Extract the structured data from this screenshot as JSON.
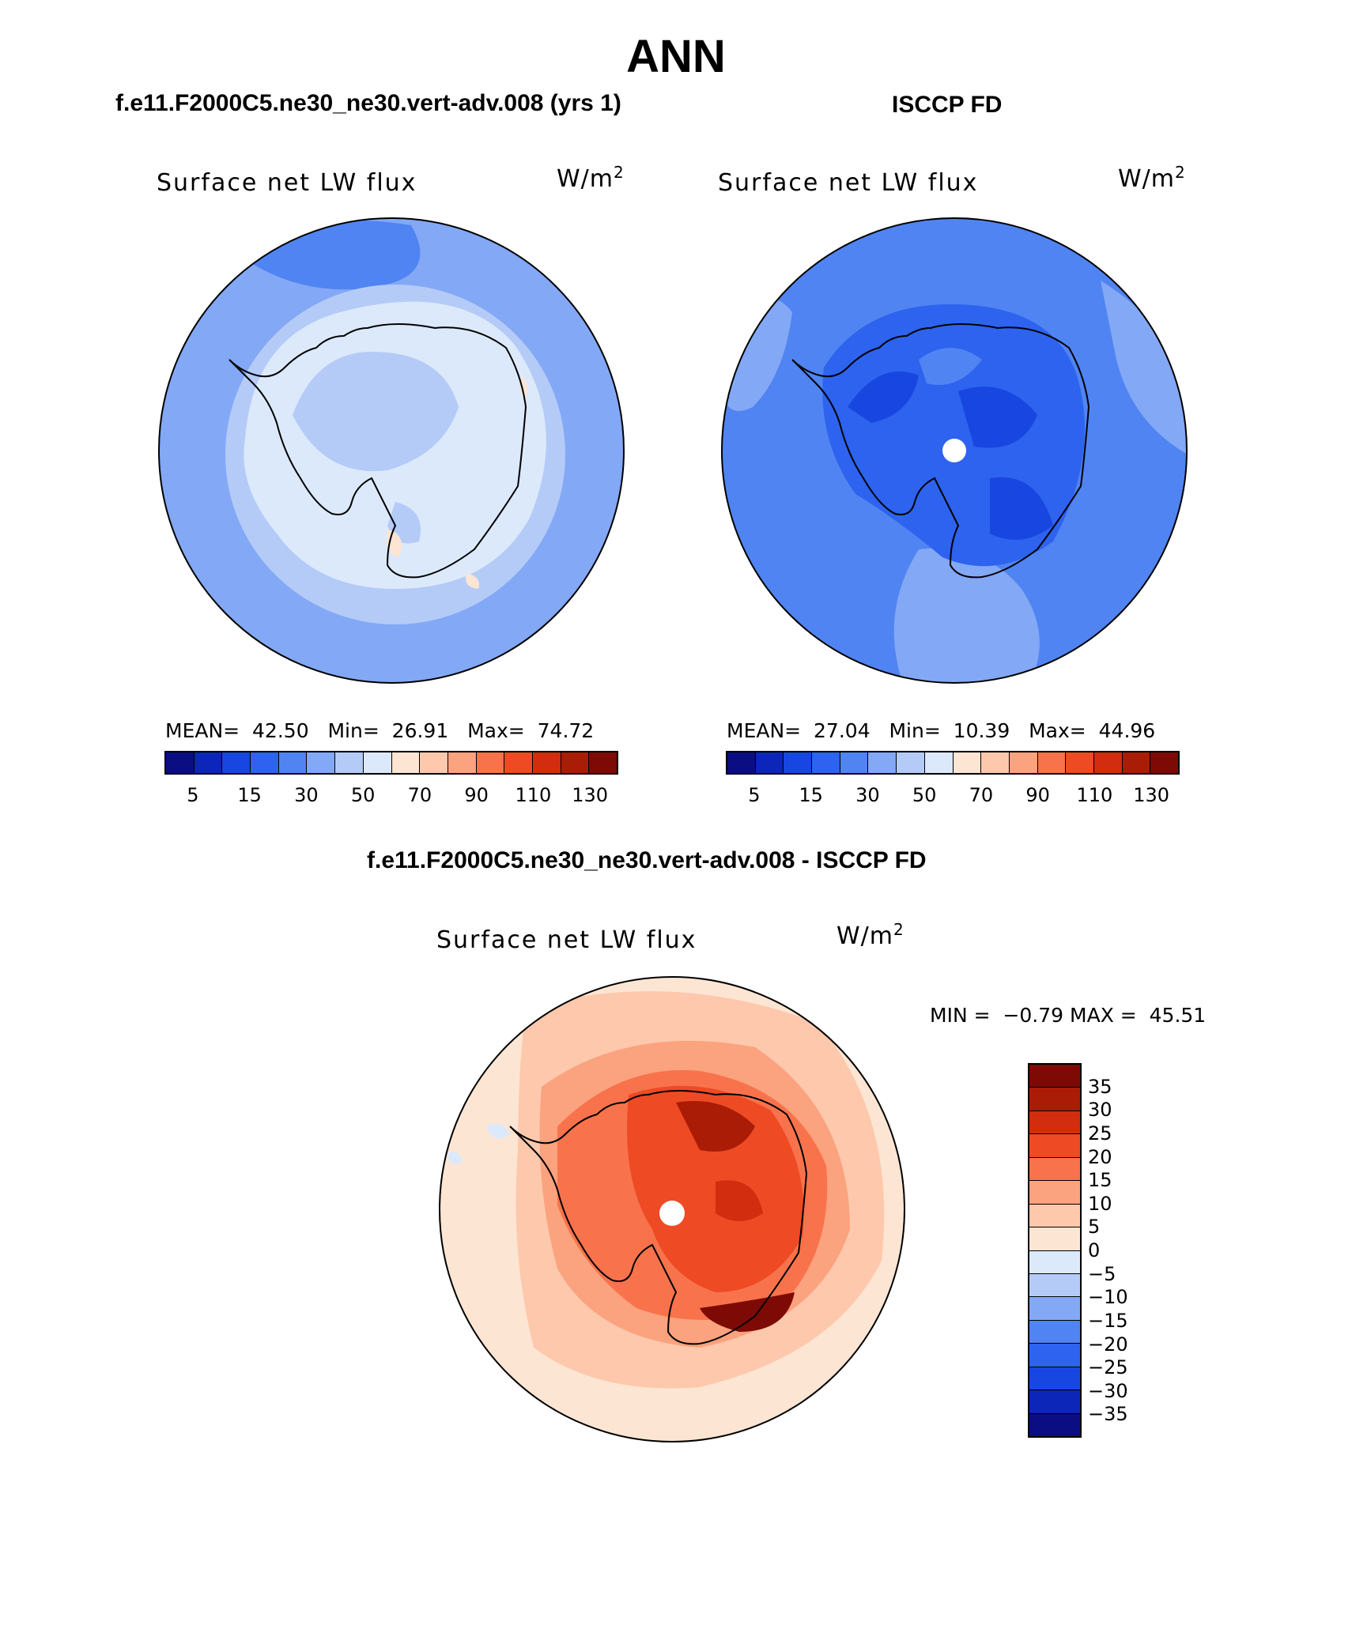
{
  "title": "ANN",
  "panels": {
    "model": {
      "header": "f.e11.F2000C5.ne30_ne30.vert-adv.008 (yrs 1)",
      "plot_title": "Surface net LW flux",
      "units": "W/m",
      "units_exp": "2",
      "stats": {
        "mean_label": "MEAN=",
        "mean": "42.50",
        "min_label": "Min=",
        "min": "26.91",
        "max_label": "Max=",
        "max": "74.72"
      },
      "colorbar_ticks": [
        "5",
        "15",
        "30",
        "50",
        "70",
        "90",
        "110",
        "130"
      ]
    },
    "obs": {
      "header": "ISCCP FD",
      "plot_title": "Surface net LW flux",
      "units": "W/m",
      "units_exp": "2",
      "stats": {
        "mean_label": "MEAN=",
        "mean": "27.04",
        "min_label": "Min=",
        "min": "10.39",
        "max_label": "Max=",
        "max": "44.96"
      },
      "colorbar_ticks": [
        "5",
        "15",
        "30",
        "50",
        "70",
        "90",
        "110",
        "130"
      ]
    },
    "diff": {
      "header": "f.e11.F2000C5.ne30_ne30.vert-adv.008 - ISCCP FD",
      "plot_title": "Surface net LW flux",
      "units": "W/m",
      "units_exp": "2",
      "stats": {
        "min_label": "MIN =",
        "min": "−0.79",
        "max_label": "MAX =",
        "max": "45.51"
      },
      "colorbar_ticks": [
        "35",
        "30",
        "25",
        "20",
        "15",
        "10",
        "5",
        "0",
        "−5",
        "−10",
        "−15",
        "−20",
        "−25",
        "−30",
        "−35"
      ]
    }
  },
  "colors": {
    "abs_scale": [
      "#0a0e82",
      "#0b26b8",
      "#1747e0",
      "#2d63ee",
      "#5084f2",
      "#83a8f5",
      "#b4cbf8",
      "#dce9fb",
      "#fde5d3",
      "#fdc8ac",
      "#fba27e",
      "#f8734c",
      "#ee4a24",
      "#d22d0e",
      "#ab1c06",
      "#7d0a04"
    ],
    "diff_scale": [
      "#7d0a04",
      "#ab1c06",
      "#d22d0e",
      "#ee4a24",
      "#f8734c",
      "#fba27e",
      "#fdc8ac",
      "#fde5d3",
      "#dce9fb",
      "#b4cbf8",
      "#83a8f5",
      "#5084f2",
      "#2d63ee",
      "#1747e0",
      "#0b26b8",
      "#0a0e82"
    ]
  }
}
